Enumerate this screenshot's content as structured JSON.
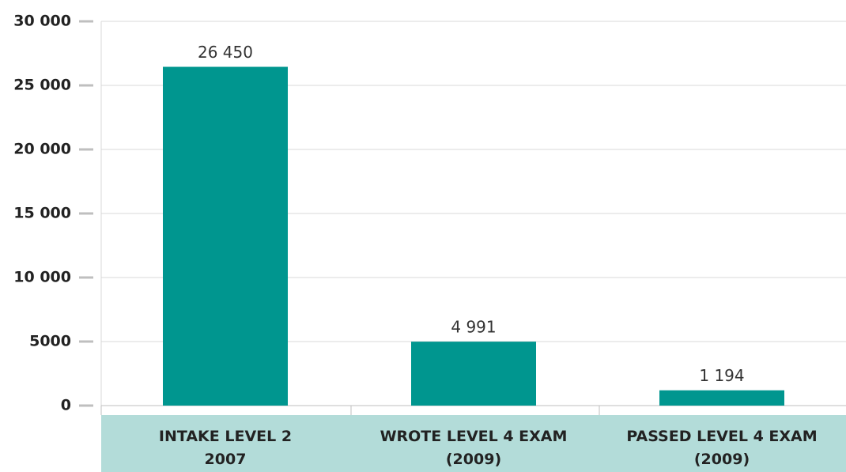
{
  "chart_data": {
    "type": "bar",
    "categories": [
      "INTAKE LEVEL 2\n2007",
      "WROTE LEVEL 4 EXAM\n(2009)",
      "PASSED LEVEL 4 EXAM\n(2009)"
    ],
    "values": [
      26450,
      4991,
      1194
    ],
    "value_labels": [
      "26 450",
      "4 991",
      "1 194"
    ],
    "color": "#00968f",
    "ylim": [
      0,
      30000
    ],
    "yticks": [
      0,
      5000,
      {
        "value": 10000,
        "label": "10 000"
      },
      {
        "value": 15000,
        "label": "15 000"
      },
      {
        "value": 20000,
        "label": "20 000"
      },
      {
        "value": 25000,
        "label": "25 000"
      },
      {
        "value": 30000,
        "label": "30 000"
      }
    ],
    "grid": true
  }
}
